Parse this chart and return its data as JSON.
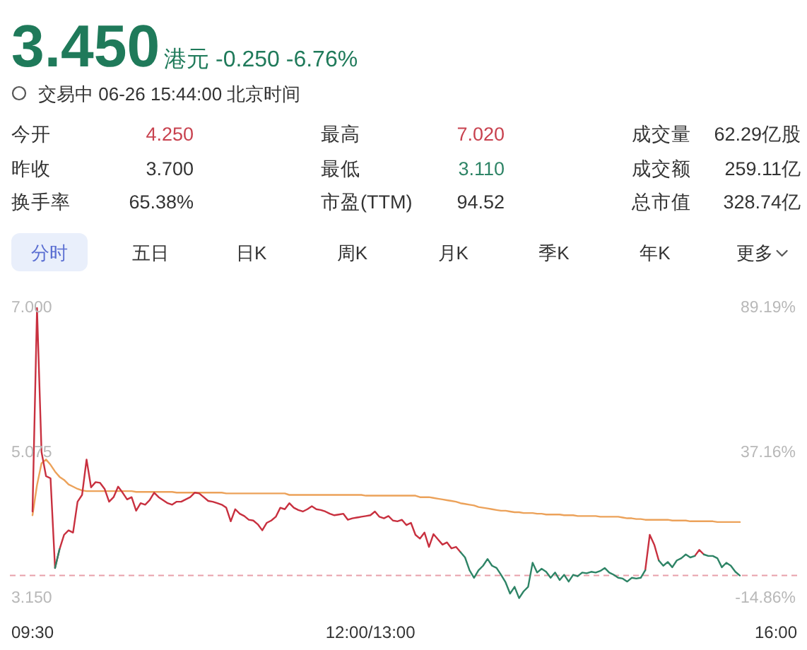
{
  "chart_data": {
    "type": "line",
    "title": "3.450",
    "subtitle": "港元 -0.250 -6.76%",
    "annotations": [
      "交易中 06-26 15:44:00 北京时间",
      "今开",
      "4.250",
      "最高",
      "7.020",
      "成交量",
      "62.29亿股",
      "昨收",
      "3.700",
      "最低",
      "3.110",
      "成交额",
      "259.11亿",
      "换手率",
      "65.38%",
      "市盈(TTM)",
      "94.52",
      "总市值",
      "328.74亿",
      "分时",
      "五日",
      "日K",
      "周K",
      "月K",
      "季K",
      "年K",
      "更多"
    ],
    "categories": [
      "09:30",
      null,
      null,
      null,
      null,
      null,
      null,
      null,
      null,
      null,
      null,
      null,
      null,
      null,
      null,
      null,
      null,
      null,
      null,
      null,
      null,
      null,
      null,
      null,
      null,
      null,
      null,
      null,
      null,
      null,
      null,
      null,
      null,
      null,
      null,
      null,
      null,
      null,
      null,
      null,
      null,
      null,
      null,
      null,
      null,
      null,
      null,
      null,
      null,
      null,
      null,
      null,
      null,
      null,
      null,
      null,
      null,
      null,
      null,
      null,
      null,
      null,
      null,
      null,
      null,
      null,
      null,
      null,
      null,
      null,
      null,
      null,
      null,
      null,
      null,
      "12:00/13:00",
      null,
      null,
      null,
      null,
      null,
      null,
      null,
      null,
      null,
      null,
      null,
      null,
      null,
      null,
      null,
      null,
      null,
      null,
      null,
      null,
      null,
      null,
      null,
      null,
      null,
      null,
      null,
      null,
      null,
      null,
      null,
      null,
      null,
      null,
      null,
      null,
      null,
      null,
      null,
      null,
      null,
      null,
      null,
      null,
      null,
      null,
      null,
      null,
      null,
      null,
      null,
      null,
      null,
      null,
      null,
      null,
      null,
      null,
      null,
      null,
      null,
      null,
      null,
      null,
      null,
      null,
      null,
      null,
      null,
      null,
      null,
      null,
      null,
      null,
      null,
      null,
      null,
      null,
      null,
      null,
      null,
      null,
      null,
      null,
      null,
      null,
      null,
      null,
      null,
      "16:00"
    ],
    "series": [
      {
        "color": "#eca25a",
        "values": [
          4.25,
          4.65,
          4.94,
          4.99,
          4.92,
          4.83,
          4.76,
          4.72,
          4.66,
          4.63,
          4.6,
          4.58,
          4.57,
          4.57,
          4.57,
          4.57,
          4.57,
          4.57,
          4.57,
          4.57,
          4.57,
          4.57,
          4.57,
          4.56,
          4.56,
          4.56,
          4.56,
          4.56,
          4.56,
          4.56,
          4.56,
          4.56,
          4.55,
          4.55,
          4.55,
          4.55,
          4.55,
          4.55,
          4.55,
          4.55,
          4.55,
          4.55,
          4.55,
          4.54,
          4.54,
          4.54,
          4.54,
          4.54,
          4.54,
          4.54,
          4.54,
          4.54,
          4.54,
          4.54,
          4.54,
          4.54,
          4.54,
          4.52,
          4.52,
          4.52,
          4.52,
          4.52,
          4.52,
          4.52,
          4.52,
          4.52,
          4.52,
          4.52,
          4.52,
          4.52,
          4.52,
          4.52,
          4.52,
          4.52,
          4.51,
          4.51,
          4.51,
          4.51,
          4.51,
          4.51,
          4.51,
          4.51,
          4.51,
          4.51,
          4.51,
          4.51,
          4.49,
          4.49,
          4.49,
          4.48,
          4.47,
          4.46,
          4.45,
          4.44,
          4.43,
          4.41,
          4.4,
          4.39,
          4.38,
          4.36,
          4.35,
          4.34,
          4.33,
          4.32,
          4.31,
          4.31,
          4.3,
          4.29,
          4.29,
          4.28,
          4.28,
          4.28,
          4.27,
          4.27,
          4.26,
          4.26,
          4.26,
          4.26,
          4.25,
          4.25,
          4.25,
          4.24,
          4.24,
          4.24,
          4.24,
          4.24,
          4.23,
          4.23,
          4.23,
          4.23,
          4.23,
          4.22,
          4.21,
          4.21,
          4.2,
          4.2,
          4.19,
          4.19,
          4.19,
          4.19,
          4.19,
          4.19,
          4.18,
          4.18,
          4.18,
          4.18,
          4.17,
          4.17,
          4.17,
          4.17,
          4.17,
          4.17,
          4.16,
          4.16,
          4.16,
          4.16,
          4.16,
          4.16,
          null,
          null,
          null,
          null,
          null,
          null,
          null,
          null
        ]
      },
      {
        "color": "#c8303f",
        "values": [
          4.3,
          7.0,
          5.09,
          4.77,
          4.74,
          3.55,
          3.8,
          3.99,
          4.05,
          4.02,
          4.43,
          4.52,
          4.99,
          4.62,
          4.69,
          4.68,
          4.6,
          4.43,
          4.49,
          4.63,
          4.55,
          4.46,
          4.49,
          4.31,
          4.41,
          4.39,
          4.45,
          4.55,
          4.49,
          4.45,
          4.41,
          4.39,
          4.43,
          4.43,
          4.46,
          4.49,
          4.55,
          4.54,
          4.49,
          4.44,
          4.43,
          4.41,
          4.39,
          4.35,
          4.17,
          4.33,
          4.27,
          4.24,
          4.19,
          4.18,
          4.13,
          4.05,
          4.15,
          4.18,
          4.23,
          4.35,
          4.33,
          4.41,
          4.35,
          4.32,
          4.3,
          4.33,
          4.37,
          4.33,
          4.32,
          4.3,
          4.27,
          4.25,
          4.26,
          4.27,
          4.19,
          4.21,
          4.22,
          4.23,
          4.24,
          4.25,
          4.3,
          4.23,
          4.21,
          4.24,
          4.18,
          4.17,
          4.19,
          4.12,
          4.15,
          3.99,
          3.94,
          4.02,
          3.83,
          4.0,
          3.93,
          3.86,
          3.89,
          3.81,
          3.83,
          3.76,
          null,
          null,
          null,
          null,
          null,
          null,
          null,
          null,
          null,
          null,
          null,
          null,
          null,
          null,
          null,
          null,
          null,
          null,
          null,
          null,
          null,
          null,
          null,
          null,
          null,
          null,
          null,
          null,
          null,
          null,
          null,
          null,
          null,
          null,
          null,
          null,
          null,
          null,
          null,
          null,
          3.52,
          3.99,
          3.86,
          3.65,
          null,
          null,
          null,
          null,
          null,
          null,
          null,
          3.71,
          3.79,
          3.73,
          null,
          null,
          null,
          null,
          null,
          null,
          null,
          null,
          null,
          null,
          null,
          null,
          null,
          null,
          null,
          null
        ]
      },
      {
        "color": "#2e8466",
        "values": [
          null,
          null,
          null,
          null,
          null,
          3.55,
          3.8,
          null,
          null,
          null,
          null,
          null,
          null,
          null,
          null,
          null,
          null,
          null,
          null,
          null,
          null,
          null,
          null,
          null,
          null,
          null,
          null,
          null,
          null,
          null,
          null,
          null,
          null,
          null,
          null,
          null,
          null,
          null,
          null,
          null,
          null,
          null,
          null,
          null,
          null,
          null,
          null,
          null,
          null,
          null,
          null,
          null,
          null,
          null,
          null,
          null,
          null,
          null,
          null,
          null,
          null,
          null,
          null,
          null,
          null,
          null,
          null,
          null,
          null,
          null,
          null,
          null,
          null,
          null,
          null,
          null,
          null,
          null,
          null,
          null,
          null,
          null,
          null,
          null,
          null,
          null,
          null,
          null,
          null,
          null,
          null,
          null,
          null,
          null,
          null,
          3.76,
          3.69,
          3.52,
          3.42,
          3.52,
          3.58,
          3.67,
          3.58,
          3.55,
          3.46,
          3.36,
          3.21,
          3.3,
          3.15,
          3.24,
          3.3,
          3.62,
          3.49,
          3.54,
          3.5,
          3.42,
          3.49,
          3.39,
          3.46,
          3.37,
          3.46,
          3.44,
          3.49,
          3.48,
          3.5,
          3.49,
          3.51,
          3.55,
          3.49,
          3.46,
          3.42,
          3.41,
          3.37,
          3.42,
          3.41,
          3.42,
          3.52,
          null,
          null,
          3.65,
          3.58,
          3.63,
          3.56,
          3.65,
          3.68,
          3.73,
          3.69,
          3.71,
          null,
          3.73,
          3.71,
          3.71,
          3.68,
          3.56,
          3.62,
          3.58,
          3.5,
          3.45,
          null,
          null,
          null,
          null,
          null,
          null,
          null,
          null
        ]
      }
    ],
    "ylim": [
      3.15,
      7.0
    ],
    "yticks": [
      {
        "value": 7.0,
        "label": "7.000"
      },
      {
        "value": 5.075,
        "label": "5.075"
      },
      {
        "value": 3.15,
        "label": "3.150"
      }
    ],
    "y2lim": [
      -14.86,
      89.19
    ],
    "y2ticks": [
      {
        "value": 89.19,
        "label": "89.19%"
      },
      {
        "value": 37.16,
        "label": "37.16%"
      },
      {
        "value": -14.86,
        "label": "-14.86%"
      }
    ],
    "ref_lines": [
      {
        "axis": "y",
        "value": 3.45,
        "color": "#e8a0aa",
        "line_style": "dashed"
      }
    ]
  }
}
